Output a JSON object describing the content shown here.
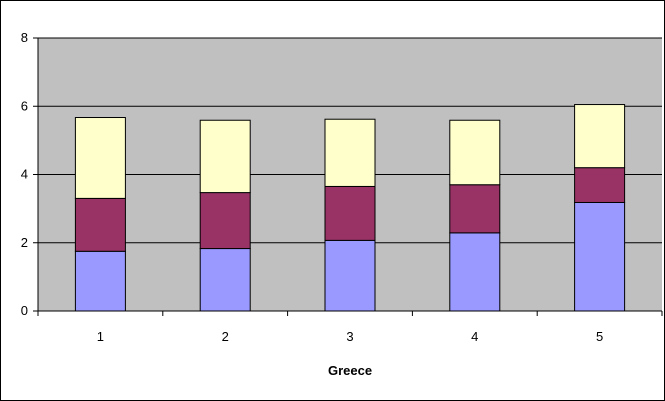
{
  "chart_data": {
    "type": "bar",
    "stacked": true,
    "title": "",
    "xlabel": "Greece",
    "ylabel": "",
    "categories": [
      "1",
      "2",
      "3",
      "4",
      "5"
    ],
    "ylim": [
      0,
      8
    ],
    "yticks": [
      0,
      2,
      4,
      6,
      8
    ],
    "grid": true,
    "legend": "none",
    "series": [
      {
        "values": [
          1.75,
          1.83,
          2.07,
          2.29,
          3.18
        ],
        "color": "#9999ff"
      },
      {
        "values": [
          1.55,
          1.64,
          1.58,
          1.41,
          1.02
        ],
        "color": "#993366"
      },
      {
        "values": [
          2.37,
          2.12,
          1.97,
          1.89,
          1.85
        ],
        "color": "#ffffcc"
      }
    ],
    "plot_background": "#c0c0c0"
  }
}
